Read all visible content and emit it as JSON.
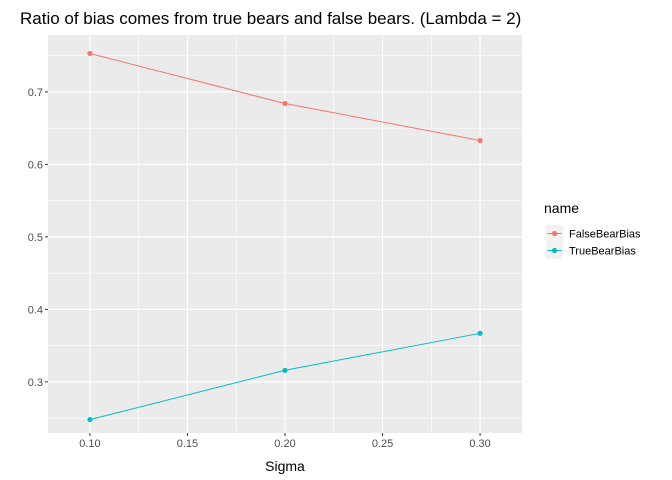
{
  "chart_data": {
    "type": "line",
    "title": "Ratio of bias comes from true bears and false bears. (Lambda = 2)",
    "xlabel": "Sigma",
    "ylabel": "",
    "x": [
      0.1,
      0.2,
      0.3
    ],
    "xlim": [
      0.0785,
      0.3215
    ],
    "ylim": [
      0.2295,
      0.7785
    ],
    "xticks": [
      0.1,
      0.15,
      0.2,
      0.25,
      0.3
    ],
    "xtick_labels": [
      "0.10",
      "0.15",
      "0.20",
      "0.25",
      "0.30"
    ],
    "yticks": [
      0.3,
      0.4,
      0.5,
      0.6,
      0.7
    ],
    "ytick_labels": [
      "0.3",
      "0.4",
      "0.5",
      "0.6",
      "0.7"
    ],
    "grid": true,
    "legend": {
      "title": "name",
      "placement": "right"
    },
    "series": [
      {
        "name": "FalseBearBias",
        "color": "#F8766D",
        "values": [
          0.753,
          0.684,
          0.633
        ]
      },
      {
        "name": "TrueBearBias",
        "color": "#00BFC4",
        "values": [
          0.248,
          0.316,
          0.367
        ]
      }
    ]
  }
}
